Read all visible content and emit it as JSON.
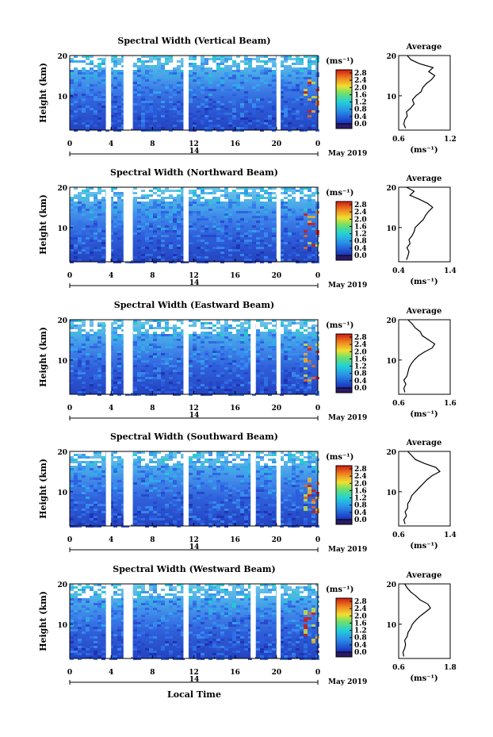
{
  "panels": [
    {
      "title": "Spectral Width (Vertical Beam)",
      "cbar_max": "2.8",
      "avg_xticks": [
        "0.6",
        "1.2"
      ],
      "avg_xrange": [
        0.6,
        1.2
      ]
    },
    {
      "title": "Spectral Width (Northward Beam)",
      "cbar_max": "2.8",
      "avg_xticks": [
        "0.4",
        "1.4"
      ],
      "avg_xrange": [
        0.4,
        1.4
      ]
    },
    {
      "title": "Spectral Width (Eastward Beam)",
      "cbar_max": "2.8",
      "avg_xticks": [
        "0.6",
        "1.6"
      ],
      "avg_xrange": [
        0.6,
        1.6
      ]
    },
    {
      "title": "Spectral Width (Southward Beam)",
      "cbar_max": "2.8",
      "avg_xticks": [
        "0.6",
        "1.4"
      ],
      "avg_xrange": [
        0.6,
        1.4
      ]
    },
    {
      "title": "Spectral Width (Westward Beam)",
      "cbar_max": "2.8",
      "avg_xticks": [
        "0.6",
        "1.8"
      ],
      "avg_xrange": [
        0.6,
        1.8
      ]
    }
  ],
  "ylabel": "Height (km)",
  "yticks": [
    "10",
    "20"
  ],
  "xticks": [
    "0",
    "4",
    "8",
    "12",
    "16",
    "20",
    "0"
  ],
  "date_center": "14",
  "date_label": "May 2019",
  "xlabel": "Local Time",
  "cbar_unit": "(ms⁻¹)",
  "cbar_ticks": [
    "0.0",
    "0.4",
    "0.8",
    "1.2",
    "1.6",
    "2.0",
    "2.4",
    "2.8"
  ],
  "avg_title": "Average",
  "avg_unit": "(ms⁻¹)",
  "colors": {
    "low": "#1e1e8c",
    "mid": "#00c8c8",
    "high": "#c80000",
    "gap": "#ffffff"
  },
  "chart_data": [
    {
      "type": "heatmap",
      "title": "Spectral Width (Vertical Beam)",
      "xlabel": "",
      "ylabel": "Height (km)",
      "xlim": [
        0,
        24
      ],
      "ylim": [
        1.5,
        20
      ],
      "data_gaps_hours": [
        [
          3.5,
          4.0
        ],
        [
          5.2,
          6.1
        ],
        [
          11.0,
          11.5
        ],
        [
          20.0,
          20.4
        ]
      ],
      "cbar_range": [
        0,
        2.8
      ],
      "cbar_unit": "ms-1"
    },
    {
      "type": "heatmap",
      "title": "Spectral Width (Northward Beam)",
      "xlabel": "",
      "ylabel": "Height (km)",
      "xlim": [
        0,
        24
      ],
      "ylim": [
        1.5,
        20
      ],
      "data_gaps_hours": [
        [
          3.5,
          4.0
        ],
        [
          5.2,
          6.1
        ],
        [
          11.0,
          11.5
        ],
        [
          20.0,
          20.4
        ]
      ],
      "cbar_range": [
        0,
        2.8
      ],
      "cbar_unit": "ms-1"
    },
    {
      "type": "heatmap",
      "title": "Spectral Width (Eastward Beam)",
      "xlabel": "",
      "ylabel": "Height (km)",
      "xlim": [
        0,
        24
      ],
      "ylim": [
        1.5,
        20
      ],
      "data_gaps_hours": [
        [
          3.5,
          4.0
        ],
        [
          5.2,
          6.1
        ],
        [
          11.0,
          11.5
        ],
        [
          17.5,
          18.0
        ],
        [
          20.0,
          20.4
        ]
      ],
      "cbar_range": [
        0,
        2.8
      ],
      "cbar_unit": "ms-1"
    },
    {
      "type": "heatmap",
      "title": "Spectral Width (Southward Beam)",
      "xlabel": "",
      "ylabel": "Height (km)",
      "xlim": [
        0,
        24
      ],
      "ylim": [
        1.5,
        20
      ],
      "data_gaps_hours": [
        [
          3.5,
          4.0
        ],
        [
          5.2,
          6.1
        ],
        [
          11.0,
          11.5
        ],
        [
          17.5,
          18.0
        ],
        [
          20.0,
          20.4
        ]
      ],
      "cbar_range": [
        0,
        2.8
      ],
      "cbar_unit": "ms-1"
    },
    {
      "type": "heatmap",
      "title": "Spectral Width (Westward Beam)",
      "xlabel": "Local Time",
      "ylabel": "Height (km)",
      "xlim": [
        0,
        24
      ],
      "ylim": [
        1.5,
        20
      ],
      "data_gaps_hours": [
        [
          3.5,
          4.0
        ],
        [
          5.2,
          6.1
        ],
        [
          11.0,
          11.5
        ],
        [
          17.5,
          18.0
        ],
        [
          20.0,
          20.4
        ]
      ],
      "cbar_range": [
        0,
        2.8
      ],
      "cbar_unit": "ms-1"
    },
    {
      "type": "line",
      "title": "Average",
      "series": [
        {
          "height_km": [
            2,
            3,
            4,
            5,
            6,
            7,
            8,
            9,
            10,
            11,
            12,
            13,
            14,
            15,
            16,
            17,
            18,
            19,
            20
          ],
          "values": [
            0.68,
            0.66,
            0.67,
            0.7,
            0.69,
            0.74,
            0.78,
            0.76,
            0.8,
            0.86,
            0.88,
            0.92,
            0.98,
            1.02,
            0.95,
            1.0,
            0.84,
            0.74,
            0.7
          ]
        }
      ],
      "xlim": [
        0.6,
        1.2
      ],
      "ylim": [
        1.5,
        20
      ]
    },
    {
      "type": "line",
      "title": "Average",
      "series": [
        {
          "height_km": [
            2,
            3,
            4,
            5,
            6,
            7,
            8,
            9,
            10,
            11,
            12,
            13,
            14,
            15,
            16,
            17,
            18,
            19,
            20
          ],
          "values": [
            0.55,
            0.58,
            0.6,
            0.56,
            0.62,
            0.6,
            0.66,
            0.7,
            0.72,
            0.8,
            0.88,
            0.92,
            0.98,
            1.06,
            0.96,
            0.8,
            0.62,
            0.7,
            0.55
          ]
        }
      ],
      "xlim": [
        0.4,
        1.4
      ],
      "ylim": [
        1.5,
        20
      ]
    },
    {
      "type": "line",
      "title": "Average",
      "series": [
        {
          "height_km": [
            2,
            3,
            4,
            5,
            6,
            7,
            8,
            9,
            10,
            11,
            12,
            13,
            14,
            15,
            16,
            17,
            18,
            19,
            20
          ],
          "values": [
            0.72,
            0.7,
            0.74,
            0.7,
            0.76,
            0.78,
            0.8,
            0.84,
            0.9,
            0.98,
            1.1,
            1.25,
            1.3,
            1.18,
            1.06,
            1.02,
            0.92,
            0.86,
            0.78
          ]
        }
      ],
      "xlim": [
        0.6,
        1.6
      ],
      "ylim": [
        1.5,
        20
      ]
    },
    {
      "type": "line",
      "title": "Average",
      "series": [
        {
          "height_km": [
            2,
            3,
            4,
            5,
            6,
            7,
            8,
            9,
            10,
            11,
            12,
            13,
            14,
            15,
            16,
            17,
            18,
            19,
            20
          ],
          "values": [
            0.7,
            0.68,
            0.72,
            0.7,
            0.74,
            0.74,
            0.78,
            0.8,
            0.86,
            0.92,
            0.98,
            1.04,
            1.12,
            1.24,
            1.18,
            1.0,
            0.86,
            0.8,
            0.74
          ]
        }
      ],
      "xlim": [
        0.6,
        1.4
      ],
      "ylim": [
        1.5,
        20
      ]
    },
    {
      "type": "line",
      "title": "Average",
      "series": [
        {
          "height_km": [
            2,
            3,
            4,
            5,
            6,
            7,
            8,
            9,
            10,
            11,
            12,
            13,
            14,
            15,
            16,
            17,
            18,
            19,
            20
          ],
          "values": [
            0.72,
            0.7,
            0.74,
            0.76,
            0.74,
            0.8,
            0.82,
            0.88,
            0.92,
            1.0,
            1.1,
            1.22,
            1.34,
            1.28,
            1.1,
            1.0,
            0.88,
            0.8,
            0.74
          ]
        }
      ],
      "xlim": [
        0.6,
        1.8
      ],
      "ylim": [
        1.5,
        20
      ]
    }
  ]
}
